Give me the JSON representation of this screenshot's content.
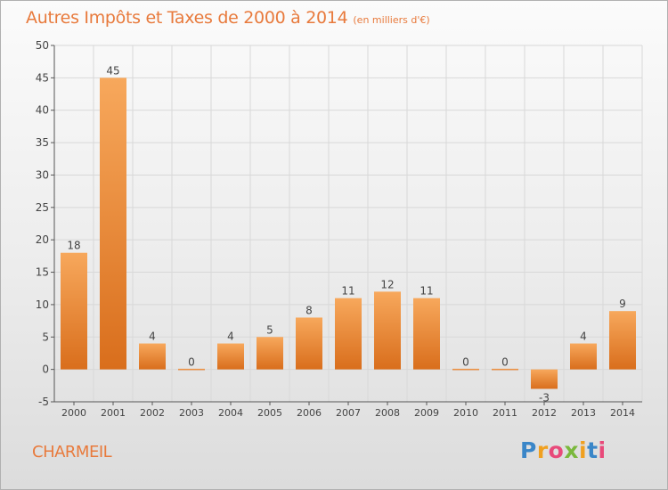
{
  "header": {
    "title": "Autres Impôts et Taxes de 2000 à 2014",
    "subtitle": "(en milliers d'€)"
  },
  "footer": {
    "town": "CHARMEIL",
    "logo_letters": [
      "P",
      "r",
      "o",
      "x",
      "i",
      "t",
      "i"
    ],
    "logo_colors": [
      "#3a86c8",
      "#f0a020",
      "#e84a7a",
      "#7ab83c",
      "#f0a020",
      "#3a86c8",
      "#e84a7a"
    ]
  },
  "colors": {
    "bar_top": "#f7a85c",
    "bar_bottom": "#d96e1c",
    "accent": "#e87a3c",
    "grid": "#d8d8d8"
  },
  "chart_data": {
    "type": "bar",
    "categories": [
      "2000",
      "2001",
      "2002",
      "2003",
      "2004",
      "2005",
      "2006",
      "2007",
      "2008",
      "2009",
      "2010",
      "2011",
      "2012",
      "2013",
      "2014"
    ],
    "values": [
      18,
      45,
      4,
      0,
      4,
      5,
      8,
      11,
      12,
      11,
      0,
      0,
      -3,
      4,
      9
    ],
    "data_labels": [
      "18",
      "45",
      "4",
      "0",
      "4",
      "5",
      "8",
      "11",
      "12",
      "11",
      "0",
      "0",
      "-3",
      "4",
      "9"
    ],
    "yticks": [
      "-5",
      "0",
      "5",
      "10",
      "15",
      "20",
      "25",
      "30",
      "35",
      "40",
      "45",
      "50"
    ],
    "ylim": [
      -5,
      50
    ],
    "grid": true,
    "legend": "none"
  }
}
